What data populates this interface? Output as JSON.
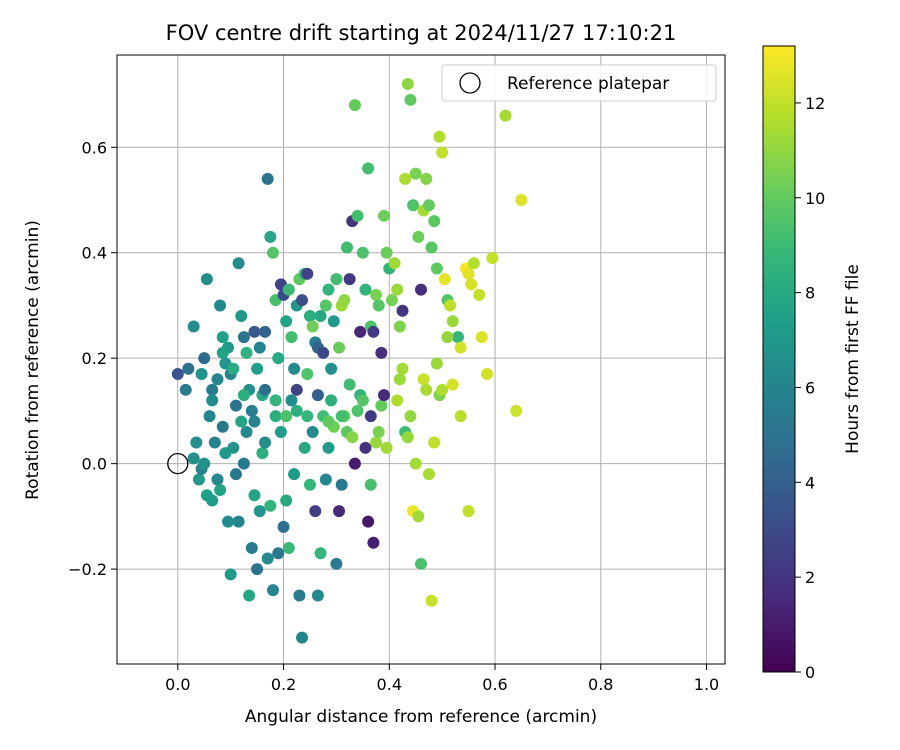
{
  "chart_data": {
    "type": "scatter",
    "title": "FOV centre drift starting at 2024/11/27 17:10:21",
    "xlabel": "Angular distance from reference (arcmin)",
    "ylabel": "Rotation from reference (arcmin)",
    "xlim": [
      -0.115,
      1.035
    ],
    "ylim": [
      -0.38,
      0.775
    ],
    "xticks": [
      0.0,
      0.2,
      0.4,
      0.6,
      0.8,
      1.0
    ],
    "xtick_labels": [
      "0.0",
      "0.2",
      "0.4",
      "0.6",
      "0.8",
      "1.0"
    ],
    "yticks": [
      -0.2,
      0.0,
      0.2,
      0.4,
      0.6
    ],
    "ytick_labels": [
      "−0.2",
      "0.0",
      "0.2",
      "0.4",
      "0.6"
    ],
    "grid": true,
    "legend": {
      "placement": "top-right",
      "entries": [
        "Reference platepar"
      ]
    },
    "reference_point": {
      "x": 0.0,
      "y": 0.0,
      "marker": "hollow-circle"
    },
    "colorbar": {
      "label": "Hours from first FF file",
      "colormap": "viridis",
      "range": [
        0,
        13.2
      ],
      "ticks": [
        0,
        2,
        4,
        6,
        8,
        10,
        12
      ],
      "tick_labels": [
        "0",
        "2",
        "4",
        "6",
        "8",
        "10",
        "12"
      ]
    },
    "colormap_stops": [
      "#440154",
      "#482878",
      "#3e4989",
      "#31688e",
      "#26828e",
      "#1f9e89",
      "#35b779",
      "#6ece58",
      "#b5de2b",
      "#fde725"
    ],
    "points": [
      [
        0.0,
        0.17,
        3.5
      ],
      [
        0.015,
        0.14,
        5.5
      ],
      [
        0.02,
        0.18,
        5.0
      ],
      [
        0.03,
        0.26,
        6.5
      ],
      [
        0.05,
        0.2,
        4.5
      ],
      [
        0.055,
        0.35,
        6.5
      ],
      [
        0.065,
        0.14,
        5.5
      ],
      [
        0.075,
        0.16,
        6.0
      ],
      [
        0.08,
        0.3,
        6.2
      ],
      [
        0.085,
        0.24,
        7.5
      ],
      [
        0.09,
        0.19,
        6.8
      ],
      [
        0.095,
        0.22,
        7.2
      ],
      [
        0.1,
        0.17,
        5.8
      ],
      [
        0.11,
        0.11,
        5.0
      ],
      [
        0.115,
        0.38,
        6.3
      ],
      [
        0.12,
        0.28,
        7.0
      ],
      [
        0.125,
        0.24,
        5.2
      ],
      [
        0.13,
        0.21,
        8.5
      ],
      [
        0.135,
        0.14,
        6.6
      ],
      [
        0.14,
        0.1,
        5.6
      ],
      [
        0.145,
        0.25,
        3.6
      ],
      [
        0.15,
        0.18,
        7.4
      ],
      [
        0.155,
        0.22,
        6.0
      ],
      [
        0.16,
        0.13,
        7.8
      ],
      [
        0.165,
        0.25,
        4.2
      ],
      [
        0.17,
        0.54,
        5.0
      ],
      [
        0.175,
        0.43,
        7.8
      ],
      [
        0.18,
        0.4,
        9.6
      ],
      [
        0.185,
        0.31,
        9.3
      ],
      [
        0.19,
        0.2,
        8.0
      ],
      [
        0.195,
        0.34,
        2.6
      ],
      [
        0.2,
        0.32,
        3.0
      ],
      [
        0.205,
        0.27,
        7.7
      ],
      [
        0.21,
        0.33,
        9.0
      ],
      [
        0.215,
        0.24,
        9.2
      ],
      [
        0.22,
        0.18,
        6.3
      ],
      [
        0.225,
        0.3,
        7.0
      ],
      [
        0.23,
        0.35,
        9.9
      ],
      [
        0.235,
        0.31,
        3.1
      ],
      [
        0.24,
        0.36,
        8.6
      ],
      [
        0.245,
        0.36,
        2.6
      ],
      [
        0.25,
        0.28,
        8.3
      ],
      [
        0.255,
        0.26,
        10.3
      ],
      [
        0.26,
        0.23,
        5.6
      ],
      [
        0.265,
        0.22,
        4.3
      ],
      [
        0.27,
        0.28,
        8.0
      ],
      [
        0.275,
        0.21,
        3.0
      ],
      [
        0.28,
        0.3,
        9.7
      ],
      [
        0.285,
        0.33,
        8.6
      ],
      [
        0.29,
        0.18,
        6.6
      ],
      [
        0.295,
        0.27,
        7.1
      ],
      [
        0.3,
        0.35,
        9.2
      ],
      [
        0.305,
        0.22,
        10.1
      ],
      [
        0.31,
        0.3,
        11.2
      ],
      [
        0.315,
        0.31,
        11.0
      ],
      [
        0.32,
        0.41,
        9.1
      ],
      [
        0.325,
        0.35,
        2.3
      ],
      [
        0.33,
        0.46,
        2.0
      ],
      [
        0.335,
        0.68,
        10.0
      ],
      [
        0.34,
        0.47,
        9.2
      ],
      [
        0.345,
        0.25,
        1.4
      ],
      [
        0.35,
        0.4,
        9.4
      ],
      [
        0.355,
        0.33,
        8.6
      ],
      [
        0.36,
        0.56,
        9.2
      ],
      [
        0.365,
        0.26,
        9.5
      ],
      [
        0.37,
        0.25,
        2.2
      ],
      [
        0.375,
        0.32,
        10.5
      ],
      [
        0.38,
        0.3,
        9.6
      ],
      [
        0.385,
        0.21,
        1.8
      ],
      [
        0.39,
        0.47,
        10.2
      ],
      [
        0.395,
        0.4,
        10.1
      ],
      [
        0.4,
        0.37,
        8.6
      ],
      [
        0.405,
        0.31,
        10.4
      ],
      [
        0.41,
        0.38,
        11.3
      ],
      [
        0.415,
        0.33,
        11.2
      ],
      [
        0.42,
        0.26,
        10.6
      ],
      [
        0.425,
        0.29,
        2.1
      ],
      [
        0.43,
        0.54,
        11.5
      ],
      [
        0.435,
        0.72,
        10.9
      ],
      [
        0.44,
        0.69,
        9.9
      ],
      [
        0.445,
        0.49,
        9.5
      ],
      [
        0.45,
        0.55,
        10.5
      ],
      [
        0.455,
        0.43,
        10.2
      ],
      [
        0.46,
        0.33,
        1.8
      ],
      [
        0.465,
        0.48,
        11.4
      ],
      [
        0.47,
        0.54,
        10.7
      ],
      [
        0.475,
        0.49,
        10.0
      ],
      [
        0.48,
        0.41,
        9.7
      ],
      [
        0.485,
        0.46,
        9.8
      ],
      [
        0.49,
        0.37,
        9.9
      ],
      [
        0.495,
        0.62,
        11.6
      ],
      [
        0.5,
        0.59,
        12.0
      ],
      [
        0.505,
        0.35,
        12.7
      ],
      [
        0.51,
        0.31,
        9.6
      ],
      [
        0.515,
        0.3,
        11.9
      ],
      [
        0.52,
        0.27,
        11.2
      ],
      [
        0.53,
        0.24,
        8.7
      ],
      [
        0.535,
        0.22,
        12.3
      ],
      [
        0.545,
        0.37,
        13.0
      ],
      [
        0.55,
        0.36,
        12.6
      ],
      [
        0.555,
        0.34,
        12.4
      ],
      [
        0.56,
        0.38,
        11.7
      ],
      [
        0.57,
        0.32,
        12.0
      ],
      [
        0.575,
        0.24,
        12.5
      ],
      [
        0.585,
        0.17,
        12.3
      ],
      [
        0.595,
        0.39,
        12.0
      ],
      [
        0.62,
        0.66,
        11.4
      ],
      [
        0.64,
        0.1,
        12.2
      ],
      [
        0.65,
        0.5,
        12.5
      ],
      [
        0.415,
        0.12,
        11.6
      ],
      [
        0.42,
        0.16,
        11.2
      ],
      [
        0.425,
        0.18,
        11.4
      ],
      [
        0.43,
        0.06,
        9.0
      ],
      [
        0.435,
        0.05,
        11.1
      ],
      [
        0.44,
        0.09,
        11.0
      ],
      [
        0.445,
        -0.09,
        12.8
      ],
      [
        0.45,
        0.0,
        11.4
      ],
      [
        0.455,
        -0.1,
        11.3
      ],
      [
        0.46,
        -0.19,
        9.4
      ],
      [
        0.465,
        0.16,
        12.1
      ],
      [
        0.47,
        0.14,
        11.5
      ],
      [
        0.475,
        -0.02,
        11.5
      ],
      [
        0.48,
        -0.26,
        12.1
      ],
      [
        0.485,
        0.04,
        11.9
      ],
      [
        0.49,
        0.19,
        11.2
      ],
      [
        0.495,
        0.13,
        10.6
      ],
      [
        0.5,
        0.14,
        11.6
      ],
      [
        0.51,
        0.24,
        11.0
      ],
      [
        0.52,
        0.15,
        12.4
      ],
      [
        0.535,
        0.09,
        11.8
      ],
      [
        0.55,
        -0.09,
        12.0
      ],
      [
        0.03,
        0.01,
        6.6
      ],
      [
        0.035,
        0.04,
        6.5
      ],
      [
        0.04,
        -0.03,
        7.0
      ],
      [
        0.045,
        -0.01,
        5.9
      ],
      [
        0.05,
        0.0,
        6.7
      ],
      [
        0.055,
        -0.06,
        7.4
      ],
      [
        0.06,
        0.09,
        6.0
      ],
      [
        0.065,
        -0.07,
        7.3
      ],
      [
        0.07,
        0.04,
        5.8
      ],
      [
        0.075,
        -0.03,
        6.2
      ],
      [
        0.08,
        -0.05,
        7.6
      ],
      [
        0.085,
        0.07,
        5.4
      ],
      [
        0.09,
        0.02,
        7.2
      ],
      [
        0.095,
        -0.11,
        6.4
      ],
      [
        0.1,
        -0.21,
        7.2
      ],
      [
        0.105,
        0.03,
        6.8
      ],
      [
        0.11,
        -0.02,
        5.3
      ],
      [
        0.115,
        -0.11,
        6.0
      ],
      [
        0.12,
        0.08,
        7.8
      ],
      [
        0.125,
        0.0,
        5.4
      ],
      [
        0.13,
        0.06,
        6.3
      ],
      [
        0.135,
        -0.25,
        7.8
      ],
      [
        0.14,
        -0.16,
        5.5
      ],
      [
        0.145,
        -0.06,
        7.6
      ],
      [
        0.15,
        -0.2,
        5.1
      ],
      [
        0.155,
        -0.09,
        6.8
      ],
      [
        0.16,
        0.02,
        8.3
      ],
      [
        0.165,
        0.04,
        6.5
      ],
      [
        0.17,
        -0.18,
        6.3
      ],
      [
        0.175,
        -0.08,
        8.6
      ],
      [
        0.18,
        -0.24,
        6.0
      ],
      [
        0.185,
        0.09,
        8.2
      ],
      [
        0.19,
        -0.17,
        5.3
      ],
      [
        0.195,
        0.06,
        7.3
      ],
      [
        0.2,
        -0.12,
        4.8
      ],
      [
        0.205,
        -0.07,
        8.0
      ],
      [
        0.21,
        -0.16,
        8.9
      ],
      [
        0.215,
        0.12,
        6.4
      ],
      [
        0.22,
        -0.02,
        7.2
      ],
      [
        0.225,
        0.1,
        8.2
      ],
      [
        0.23,
        -0.25,
        5.5
      ],
      [
        0.235,
        -0.33,
        6.0
      ],
      [
        0.24,
        0.03,
        7.9
      ],
      [
        0.245,
        0.09,
        8.7
      ],
      [
        0.25,
        -0.04,
        8.7
      ],
      [
        0.255,
        0.06,
        6.3
      ],
      [
        0.26,
        -0.09,
        2.5
      ],
      [
        0.265,
        -0.25,
        6.2
      ],
      [
        0.27,
        -0.17,
        8.7
      ],
      [
        0.275,
        0.09,
        9.1
      ],
      [
        0.28,
        -0.03,
        6.1
      ],
      [
        0.285,
        0.03,
        7.3
      ],
      [
        0.29,
        0.12,
        8.3
      ],
      [
        0.295,
        0.07,
        10.3
      ],
      [
        0.3,
        -0.19,
        5.5
      ],
      [
        0.305,
        -0.09,
        1.5
      ],
      [
        0.31,
        -0.04,
        5.3
      ],
      [
        0.315,
        0.09,
        10.0
      ],
      [
        0.32,
        0.06,
        9.8
      ],
      [
        0.325,
        0.15,
        9.1
      ],
      [
        0.33,
        0.05,
        10.8
      ],
      [
        0.335,
        -0.0,
        1.0
      ],
      [
        0.34,
        0.1,
        9.5
      ],
      [
        0.345,
        0.13,
        8.6
      ],
      [
        0.35,
        0.12,
        9.6
      ],
      [
        0.355,
        0.03,
        1.8
      ],
      [
        0.36,
        -0.11,
        0.9
      ],
      [
        0.365,
        -0.04,
        9.3
      ],
      [
        0.37,
        -0.15,
        1.2
      ],
      [
        0.375,
        0.04,
        11.1
      ],
      [
        0.38,
        0.06,
        10.5
      ],
      [
        0.385,
        0.11,
        10.0
      ],
      [
        0.39,
        0.13,
        1.6
      ],
      [
        0.395,
        0.03,
        11.3
      ],
      [
        0.365,
        0.09,
        2.3
      ],
      [
        0.31,
        0.09,
        9.2
      ],
      [
        0.285,
        0.08,
        9.9
      ],
      [
        0.265,
        0.13,
        4.0
      ],
      [
        0.245,
        0.17,
        9.5
      ],
      [
        0.225,
        0.14,
        2.7
      ],
      [
        0.205,
        0.09,
        9.4
      ],
      [
        0.185,
        0.12,
        8.6
      ],
      [
        0.165,
        0.14,
        4.8
      ],
      [
        0.145,
        0.08,
        5.8
      ],
      [
        0.125,
        0.13,
        8.3
      ],
      [
        0.105,
        0.18,
        8.1
      ],
      [
        0.085,
        0.21,
        7.6
      ],
      [
        0.065,
        0.12,
        6.4
      ],
      [
        0.045,
        0.17,
        6.8
      ]
    ]
  }
}
